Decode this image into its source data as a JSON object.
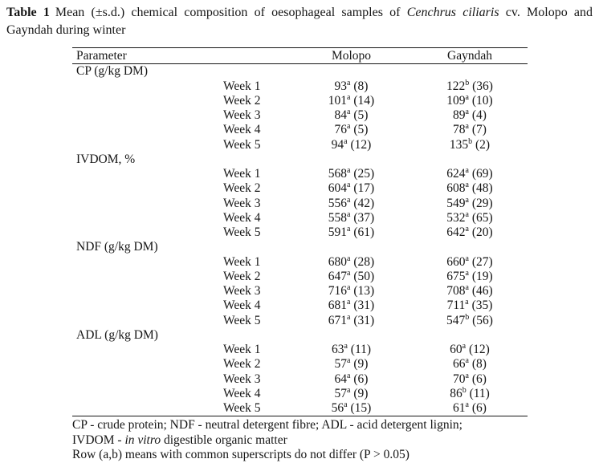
{
  "title": {
    "label": "Table 1",
    "line1_rest": "Mean (±s.d.) chemical composition of oesophageal samples of ",
    "species": "Cenchrus ciliaris",
    "line1_end": " cv. Molopo and",
    "line2": "Gayndah during winter"
  },
  "table": {
    "headers": {
      "parameter": "Parameter",
      "molopo": "Molopo",
      "gayndah": "Gayndah"
    },
    "sections": [
      {
        "parameter": "CP (g/kg DM)",
        "rows": [
          {
            "week": "Week 1",
            "molopo": {
              "value": "93",
              "sup": "a",
              "sd": "(8)"
            },
            "gayndah": {
              "value": "122",
              "sup": "b",
              "sd": "(36)"
            }
          },
          {
            "week": "Week 2",
            "molopo": {
              "value": "101",
              "sup": "a",
              "sd": "(14)"
            },
            "gayndah": {
              "value": "109",
              "sup": "a",
              "sd": "(10)"
            }
          },
          {
            "week": "Week 3",
            "molopo": {
              "value": "84",
              "sup": "a",
              "sd": "(5)"
            },
            "gayndah": {
              "value": "89",
              "sup": "a",
              "sd": "(4)"
            }
          },
          {
            "week": "Week 4",
            "molopo": {
              "value": "76",
              "sup": "a",
              "sd": "(5)"
            },
            "gayndah": {
              "value": "78",
              "sup": "a",
              "sd": "(7)"
            }
          },
          {
            "week": "Week 5",
            "molopo": {
              "value": "94",
              "sup": "a",
              "sd": "(12)"
            },
            "gayndah": {
              "value": "135",
              "sup": "b",
              "sd": "(2)"
            }
          }
        ]
      },
      {
        "parameter": "IVDOM, %",
        "rows": [
          {
            "week": "Week 1",
            "molopo": {
              "value": "568",
              "sup": "a",
              "sd": "(25)"
            },
            "gayndah": {
              "value": "624",
              "sup": "a",
              "sd": "(69)"
            }
          },
          {
            "week": "Week 2",
            "molopo": {
              "value": "604",
              "sup": "a",
              "sd": "(17)"
            },
            "gayndah": {
              "value": "608",
              "sup": "a",
              "sd": "(48)"
            }
          },
          {
            "week": "Week 3",
            "molopo": {
              "value": "556",
              "sup": "a",
              "sd": "(42)"
            },
            "gayndah": {
              "value": "549",
              "sup": "a",
              "sd": "(29)"
            }
          },
          {
            "week": "Week 4",
            "molopo": {
              "value": "558",
              "sup": "a",
              "sd": "(37)"
            },
            "gayndah": {
              "value": "532",
              "sup": "a",
              "sd": "(65)"
            }
          },
          {
            "week": "Week 5",
            "molopo": {
              "value": "591",
              "sup": "a",
              "sd": "(61)"
            },
            "gayndah": {
              "value": "642",
              "sup": "a",
              "sd": "(20)"
            }
          }
        ]
      },
      {
        "parameter": "NDF (g/kg DM)",
        "rows": [
          {
            "week": "Week 1",
            "molopo": {
              "value": "680",
              "sup": "a",
              "sd": "(28)"
            },
            "gayndah": {
              "value": "660",
              "sup": "a",
              "sd": "(27)"
            }
          },
          {
            "week": "Week 2",
            "molopo": {
              "value": "647",
              "sup": "a",
              "sd": "(50)"
            },
            "gayndah": {
              "value": "675",
              "sup": "a",
              "sd": "(19)"
            }
          },
          {
            "week": "Week 3",
            "molopo": {
              "value": "716",
              "sup": "a",
              "sd": "(13)"
            },
            "gayndah": {
              "value": "708",
              "sup": "a",
              "sd": "(46)"
            }
          },
          {
            "week": "Week 4",
            "molopo": {
              "value": "681",
              "sup": "a",
              "sd": "(31)"
            },
            "gayndah": {
              "value": "711",
              "sup": "a",
              "sd": "(35)"
            }
          },
          {
            "week": "Week 5",
            "molopo": {
              "value": "671",
              "sup": "a",
              "sd": "(31)"
            },
            "gayndah": {
              "value": "547",
              "sup": "b",
              "sd": "(56)"
            }
          }
        ]
      },
      {
        "parameter": "ADL (g/kg DM)",
        "rows": [
          {
            "week": "Week 1",
            "molopo": {
              "value": "63",
              "sup": "a",
              "sd": "(11)"
            },
            "gayndah": {
              "value": "60",
              "sup": "a",
              "sd": "(12)"
            }
          },
          {
            "week": "Week 2",
            "molopo": {
              "value": "57",
              "sup": "a",
              "sd": "(9)"
            },
            "gayndah": {
              "value": "66",
              "sup": "a",
              "sd": "(8)"
            }
          },
          {
            "week": "Week 3",
            "molopo": {
              "value": "64",
              "sup": "a",
              "sd": "(6)"
            },
            "gayndah": {
              "value": "70",
              "sup": "a",
              "sd": "(6)"
            }
          },
          {
            "week": "Week 4",
            "molopo": {
              "value": "57",
              "sup": "a",
              "sd": "(9)"
            },
            "gayndah": {
              "value": "86",
              "sup": "b",
              "sd": "(11)"
            }
          },
          {
            "week": "Week 5",
            "molopo": {
              "value": "56",
              "sup": "a",
              "sd": "(15)"
            },
            "gayndah": {
              "value": "61",
              "sup": "a",
              "sd": "(6)"
            }
          }
        ]
      }
    ]
  },
  "footnotes": {
    "line1": "CP - crude protein; NDF - neutral detergent fibre; ADL - acid detergent lignin;",
    "line2_prefix": "IVDOM - ",
    "line2_italic": "in vitro",
    "line2_suffix": " digestible organic matter",
    "line3": "Row (a,b) means with common superscripts do not differ (P > 0.05)"
  }
}
